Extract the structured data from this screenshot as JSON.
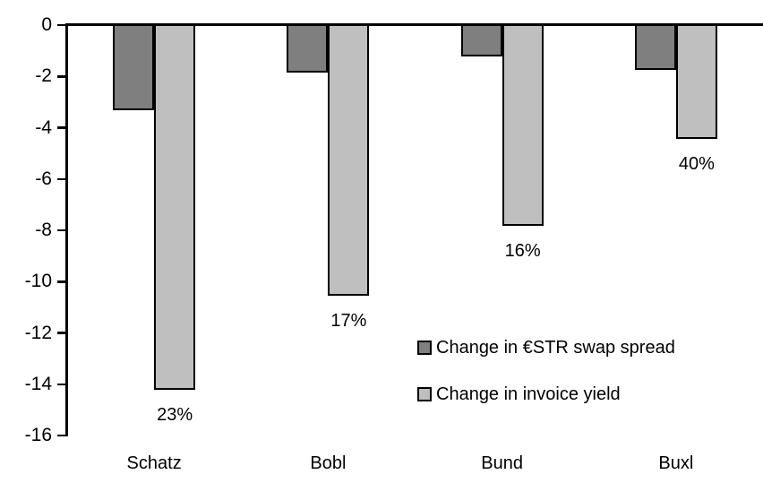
{
  "chart_data": {
    "type": "bar",
    "orientation": "vertical",
    "title": "",
    "xlabel": "",
    "ylabel": "",
    "categories": [
      "Schatz",
      "Bobl",
      "Bund",
      "Buxl"
    ],
    "series": [
      {
        "name": "Change in €STR swap spread",
        "color": "#7f7f7f",
        "values": [
          -3.3,
          -1.8,
          -1.2,
          -1.7
        ]
      },
      {
        "name": "Change in invoice yield",
        "color": "#bfbfbf",
        "values": [
          -14.2,
          -10.5,
          -7.8,
          -4.4
        ],
        "data_labels": [
          "23%",
          "17%",
          "16%",
          "40%"
        ]
      }
    ],
    "ylim": [
      -16,
      0
    ],
    "yticks": [
      0,
      -2,
      -4,
      -6,
      -8,
      -10,
      -12,
      -14,
      -16
    ],
    "grid": false,
    "legend_position": "inside-right",
    "bar_border_color": "#000000",
    "axis_color": "#000000",
    "background_color": "#ffffff"
  }
}
